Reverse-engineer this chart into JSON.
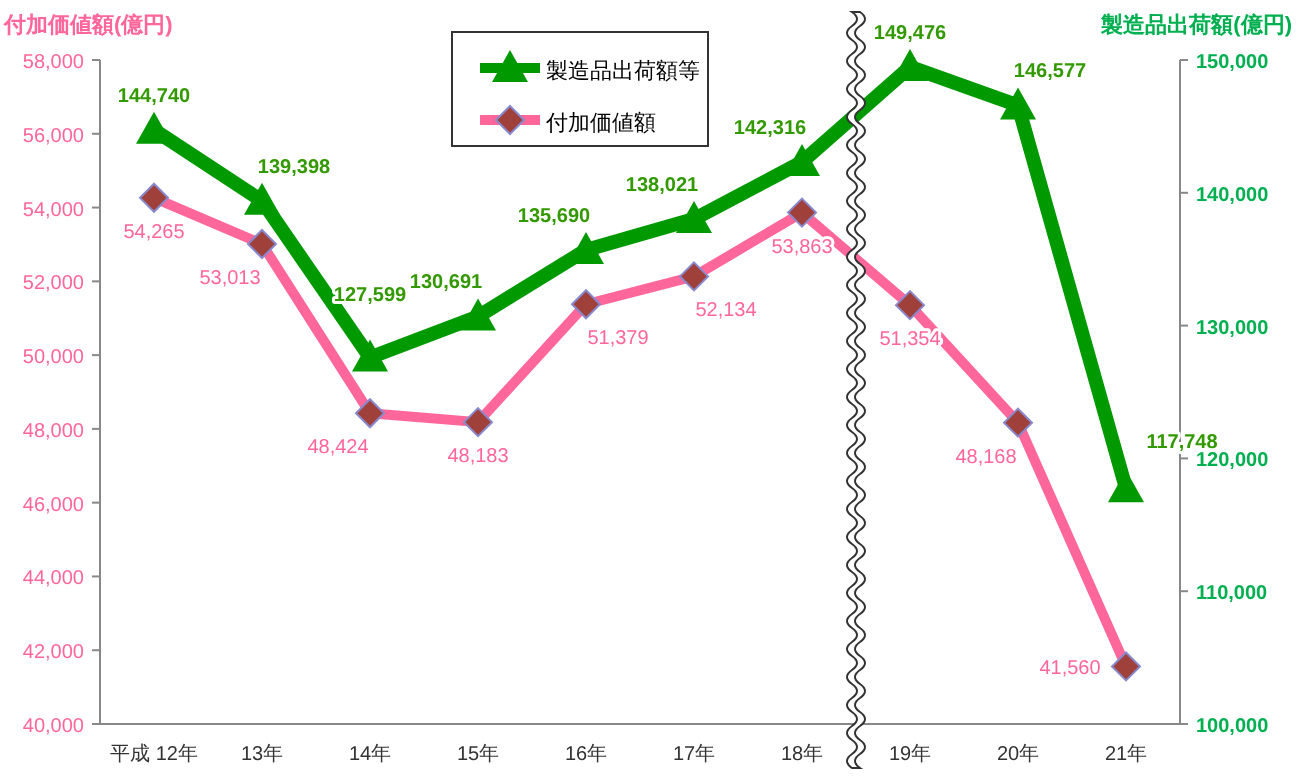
{
  "chart_data": {
    "type": "line",
    "ylabel": "付加価値額(億円)",
    "y2label": "製造品出荷額(億円)",
    "categories": [
      "平成 12年",
      "13年",
      "14年",
      "15年",
      "16年",
      "17年",
      "18年",
      "19年",
      "20年",
      "21年"
    ],
    "series": [
      {
        "name": "製造品出荷額等",
        "color": "#009900",
        "axis": "y2",
        "marker": "triangle",
        "values": [
          144740,
          139398,
          127599,
          130691,
          135690,
          138021,
          142316,
          149476,
          146577,
          117748
        ],
        "value_labels": [
          "144,740",
          "139,398",
          "127,599",
          "130,691",
          "135,690",
          "138,021",
          "142,316",
          "149,476",
          "146,577",
          "117,748"
        ]
      },
      {
        "name": "付加価値額",
        "color": "#ff6699",
        "axis": "y",
        "marker": "diamond",
        "values": [
          54265,
          53013,
          48424,
          48183,
          51379,
          52134,
          53863,
          51354,
          48168,
          41560
        ],
        "value_labels": [
          "54,265",
          "53,013",
          "48,424",
          "48,183",
          "51,379",
          "52,134",
          "53,863",
          "51,354",
          "48,168",
          "41,560"
        ]
      }
    ],
    "ylim": [
      40000,
      58000
    ],
    "yticks": [
      {
        "value": 40000,
        "label": "40,000"
      },
      {
        "value": 42000,
        "label": "42,000"
      },
      {
        "value": 44000,
        "label": "44,000"
      },
      {
        "value": 46000,
        "label": "46,000"
      },
      {
        "value": 48000,
        "label": "48,000"
      },
      {
        "value": 50000,
        "label": "50,000"
      },
      {
        "value": 52000,
        "label": "52,000"
      },
      {
        "value": 54000,
        "label": "54,000"
      },
      {
        "value": 56000,
        "label": "56,000"
      },
      {
        "value": 58000,
        "label": "58,000"
      }
    ],
    "y2lim": [
      100000,
      150000
    ],
    "y2ticks": [
      {
        "value": 100000,
        "label": "100,000"
      },
      {
        "value": 110000,
        "label": "110,000"
      },
      {
        "value": 120000,
        "label": "120,000"
      },
      {
        "value": 130000,
        "label": "130,000"
      },
      {
        "value": 140000,
        "label": "140,000"
      },
      {
        "value": 150000,
        "label": "150,000"
      }
    ],
    "legend": "top",
    "grid": false
  }
}
